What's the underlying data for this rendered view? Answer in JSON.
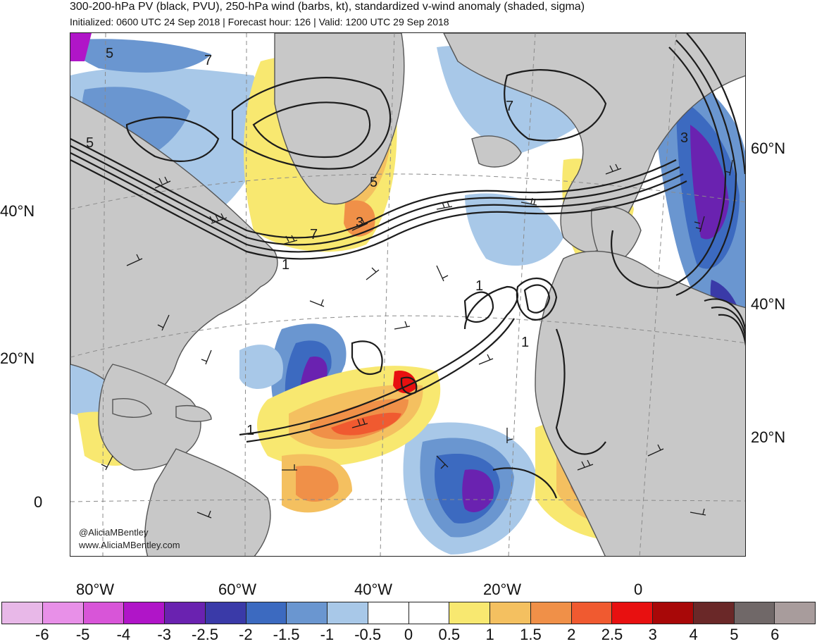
{
  "header": {
    "title": "300-200-hPa PV (black, PVU), 250-hPa wind (barbs, kt), standardized v-wind anomaly (shaded, sigma)",
    "subtitle": "Initialized: 0600 UTC 24 Sep 2018 | Forecast hour: 126 | Valid: 1200 UTC 29 Sep 2018"
  },
  "map": {
    "lat_labels_left": [
      "40°N",
      "20°N",
      "0"
    ],
    "lat_labels_right": [
      "60°N",
      "40°N",
      "20°N"
    ],
    "lon_labels": [
      "80°W",
      "60°W",
      "40°W",
      "20°W",
      "0"
    ],
    "contour_labels": [
      "5",
      "7",
      "5",
      "5",
      "3",
      "7",
      "1",
      "1",
      "1",
      "1",
      "7",
      "3"
    ],
    "credit_line1": "@AliciaMBentley",
    "credit_line2": "www.AliciaMBentley.com",
    "colors": {
      "land": "#c8c8c8",
      "coast": "#555555",
      "contour": "#1c1c1c"
    }
  },
  "colorbar": {
    "labels": [
      "-6",
      "-5",
      "-4",
      "-3",
      "-2.5",
      "-2",
      "-1.5",
      "-1",
      "-0.5",
      "0",
      "0.5",
      "1",
      "1.5",
      "2",
      "2.5",
      "3",
      "4",
      "5",
      "6"
    ],
    "colors": [
      "#e8b8e8",
      "#e890e8",
      "#d855d8",
      "#b015c8",
      "#6a22b0",
      "#3a3aa8",
      "#3c6ac0",
      "#6a96d0",
      "#a8c8e8",
      "#ffffff",
      "#ffffff",
      "#f8e870",
      "#f4c060",
      "#f09048",
      "#f05a30",
      "#e81010",
      "#a80808",
      "#6a2828",
      "#706868",
      "#a89c9c"
    ]
  }
}
